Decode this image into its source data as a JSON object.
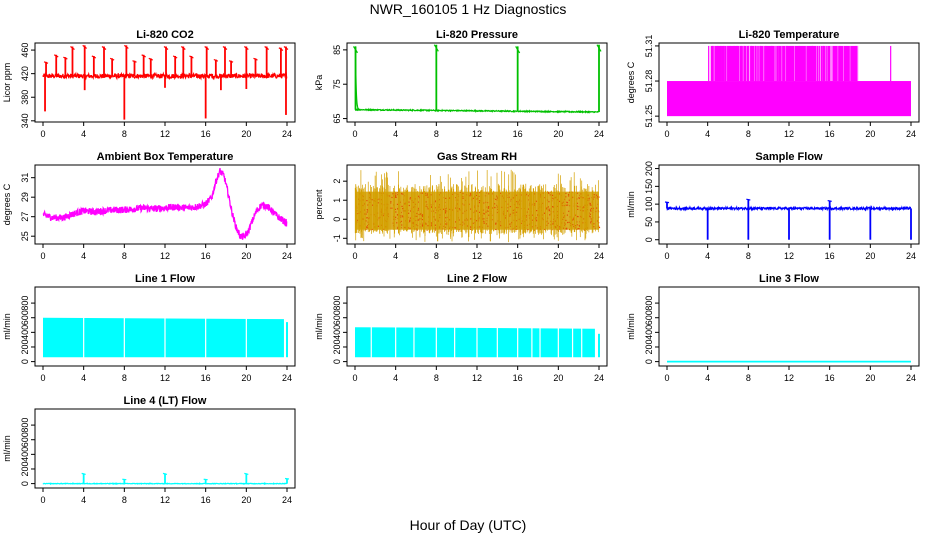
{
  "figure": {
    "title": "NWR_160105  1 Hz Diagnostics",
    "x_axis_caption": "Hour of Day (UTC)"
  },
  "chart_data": [
    {
      "type": "line",
      "title": "Li-820 CO2",
      "ylabel": "Licor ppm",
      "color": "#ff0000",
      "style": "baseline_spikes",
      "x_ticks": [
        0,
        4,
        8,
        12,
        16,
        20,
        24
      ],
      "xlim": [
        0,
        24
      ],
      "y_ticks": [
        340,
        380,
        420,
        460
      ],
      "ylim": [
        338,
        472
      ],
      "series": [
        {
          "baseline": 416,
          "noise": 4,
          "up_spikes_hours": [
            0.3,
            1.3,
            2.2,
            2.9,
            4.1,
            5.0,
            6.0,
            6.8,
            8.2,
            9.0,
            9.9,
            10.6,
            12.1,
            13.0,
            13.8,
            14.6,
            16.1,
            17.0,
            17.9,
            18.5,
            20.0,
            20.9,
            22.0,
            23.4,
            23.9
          ],
          "up_spike_values": [
            440,
            452,
            448,
            466,
            468,
            450,
            466,
            446,
            468,
            442,
            452,
            446,
            466,
            450,
            466,
            450,
            466,
            444,
            466,
            442,
            466,
            446,
            466,
            464,
            466
          ],
          "down_spikes_hours": [
            0.2,
            4.1,
            8.0,
            12.0,
            16.0,
            17.5,
            20.0,
            23.9
          ],
          "down_spike_values": [
            356,
            392,
            342,
            396,
            344,
            392,
            394,
            350
          ]
        }
      ]
    },
    {
      "type": "line",
      "title": "Li-820 Pressure",
      "ylabel": "kPa",
      "color": "#00c000",
      "style": "baseline_spikes",
      "x_ticks": [
        0,
        4,
        8,
        12,
        16,
        20,
        24
      ],
      "xlim": [
        0,
        24
      ],
      "y_ticks": [
        65,
        75,
        85
      ],
      "ylim": [
        64,
        87
      ],
      "series": [
        {
          "baseline_start": 67.6,
          "baseline_end": 66.9,
          "noise": 0.15,
          "up_spikes_hours": [
            0.05,
            8.0,
            16.0,
            24.0
          ],
          "up_spike_values": [
            86,
            86.5,
            86,
            86.5
          ],
          "decay_after_first_spike": true
        }
      ]
    },
    {
      "type": "line",
      "title": "Li-820 Temperature",
      "ylabel": "degrees C",
      "color": "#ff00ff",
      "style": "quantized_fill",
      "x_ticks": [
        0,
        4,
        8,
        12,
        16,
        20,
        24
      ],
      "xlim": [
        0,
        24
      ],
      "y_ticks": [
        51.25,
        51.28,
        51.31
      ],
      "y_tick_labels": [
        "51.25",
        "51.28",
        "51.31"
      ],
      "ylim": [
        51.245,
        51.3125
      ],
      "series": [
        {
          "low_level": 51.25,
          "mid_level": 51.28,
          "high_level": 51.31,
          "mid_span_hours": [
            0,
            24
          ],
          "high_band_hours": [
            [
              4.3,
              18.8
            ]
          ],
          "high_spikes_hours": [
            4.1,
            4.5,
            5.0,
            5.3,
            5.6,
            6.0,
            6.2,
            6.6,
            6.9,
            7.3,
            7.6,
            8.0,
            8.3,
            8.7,
            9.2,
            9.7,
            10.3,
            11.0,
            11.8,
            13.0,
            14.3,
            15.4,
            17.0,
            18.6,
            22.0
          ]
        }
      ]
    },
    {
      "type": "line",
      "title": "Ambient Box Temperature",
      "ylabel": "degrees C",
      "color": "#ff00ff",
      "style": "noisy_curve",
      "x_ticks": [
        0,
        4,
        8,
        12,
        16,
        20,
        24
      ],
      "xlim": [
        0,
        24
      ],
      "y_ticks": [
        25,
        27,
        29,
        31
      ],
      "ylim": [
        24.2,
        32.3
      ],
      "series": [
        {
          "x": [
            0,
            1,
            2,
            3,
            4,
            5,
            6,
            7,
            8,
            9,
            10,
            11,
            12,
            13,
            14,
            15,
            16,
            16.6,
            17,
            17.4,
            17.8,
            18.2,
            18.6,
            19,
            19.4,
            19.8,
            20.2,
            20.6,
            21,
            21.5,
            22,
            22.5,
            23,
            23.5,
            24
          ],
          "y": [
            27.2,
            26.9,
            26.9,
            27.3,
            27.6,
            27.5,
            27.6,
            27.7,
            27.7,
            27.8,
            27.9,
            27.8,
            27.9,
            28.0,
            27.9,
            28.0,
            28.3,
            29.0,
            30.6,
            31.7,
            31.2,
            29.4,
            27.4,
            25.9,
            25.0,
            24.9,
            25.5,
            26.6,
            27.6,
            28.2,
            28.1,
            27.6,
            27.1,
            26.7,
            26.3
          ],
          "noise": 0.35
        }
      ]
    },
    {
      "type": "scatter",
      "title": "Gas Stream RH",
      "ylabel": "percent",
      "color": "#d4a000",
      "overlay_color": "#e05000",
      "style": "dense_band",
      "x_ticks": [
        0,
        4,
        8,
        12,
        16,
        20,
        24
      ],
      "xlim": [
        0,
        24
      ],
      "y_ticks": [
        -1,
        0,
        1,
        2
      ],
      "ylim": [
        -1.3,
        2.85
      ],
      "series": [
        {
          "center": 0.45,
          "spread": 1.0,
          "outlier_max": 2.6,
          "outlier_min": -1.2
        }
      ]
    },
    {
      "type": "line",
      "title": "Sample Flow",
      "ylabel": "ml/min",
      "color": "#0000ff",
      "style": "baseline_spikes",
      "x_ticks": [
        0,
        4,
        8,
        12,
        16,
        20,
        24
      ],
      "xlim": [
        0,
        24
      ],
      "y_ticks": [
        0,
        50,
        100,
        150,
        200
      ],
      "ylim": [
        -12,
        210
      ],
      "series": [
        {
          "baseline": 88,
          "noise": 3,
          "up_spikes_hours": [
            0.0,
            8.0,
            16.0
          ],
          "up_spike_values": [
            106,
            114,
            110
          ],
          "down_spikes_hours": [
            4.0,
            8.0,
            12.0,
            16.0,
            20.0,
            24.0
          ],
          "down_spike_values": [
            0,
            0,
            0,
            0,
            0,
            0
          ]
        }
      ]
    },
    {
      "type": "area",
      "title": "Line 1 Flow",
      "ylabel": "ml/min",
      "color": "#00ffff",
      "style": "solid_band",
      "x_ticks": [
        0,
        4,
        8,
        12,
        16,
        20,
        24
      ],
      "xlim": [
        0,
        24
      ],
      "y_ticks": [
        0,
        200,
        400,
        600,
        800
      ],
      "ylim": [
        -60,
        1020
      ],
      "series": [
        {
          "band_low": 60,
          "band_high_start": 600,
          "band_high_end": 580,
          "x_start": 0,
          "x_end": 23.7,
          "gaps_hours": [
            4.0,
            8.0,
            12.0,
            16.0,
            20.0
          ],
          "tail_segment": [
            24.0,
            540
          ]
        }
      ]
    },
    {
      "type": "area",
      "title": "Line 2 Flow",
      "ylabel": "ml/min",
      "color": "#00ffff",
      "style": "solid_band",
      "x_ticks": [
        0,
        4,
        8,
        12,
        16,
        20,
        24
      ],
      "xlim": [
        0,
        24
      ],
      "y_ticks": [
        0,
        200,
        400,
        600,
        800
      ],
      "ylim": [
        -60,
        1020
      ],
      "series": [
        {
          "band_low": 60,
          "band_high_start": 470,
          "band_high_end": 450,
          "x_start": 0,
          "x_end": 23.6,
          "gaps_hours": [
            1.6,
            4.0,
            5.8,
            8.0,
            9.8,
            12.0,
            14.0,
            16.0,
            17.4,
            18.2,
            20.0,
            21.4,
            22.3
          ],
          "tail_segment": [
            24.0,
            380
          ]
        }
      ]
    },
    {
      "type": "line",
      "title": "Line 3 Flow",
      "ylabel": "ml/min",
      "color": "#00ffff",
      "style": "flat",
      "x_ticks": [
        0,
        4,
        8,
        12,
        16,
        20,
        24
      ],
      "xlim": [
        0,
        24
      ],
      "y_ticks": [
        0,
        200,
        400,
        600,
        800
      ],
      "ylim": [
        -60,
        1020
      ],
      "series": [
        {
          "baseline": 0
        }
      ]
    },
    {
      "type": "line",
      "title": "Line 4 (LT) Flow",
      "ylabel": "ml/min",
      "color": "#00ffff",
      "style": "baseline_spikes",
      "x_ticks": [
        0,
        4,
        8,
        12,
        16,
        20,
        24
      ],
      "xlim": [
        0,
        24
      ],
      "y_ticks": [
        0,
        200,
        400,
        600,
        800
      ],
      "ylim": [
        -60,
        1020
      ],
      "series": [
        {
          "baseline": 0,
          "noise": 4,
          "up_spikes_hours": [
            4.0,
            8.0,
            12.0,
            16.0,
            20.0,
            24.0
          ],
          "up_spike_values": [
            140,
            60,
            140,
            60,
            140,
            70
          ]
        }
      ]
    }
  ]
}
